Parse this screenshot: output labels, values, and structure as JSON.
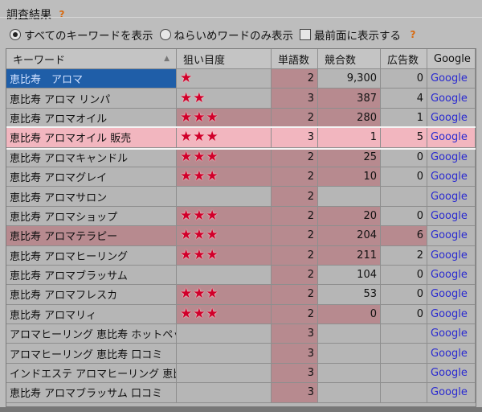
{
  "title": "調査結果",
  "options": {
    "all_keywords": "すべてのキーワードを表示",
    "target_only": "ねらいめワードのみ表示",
    "always_on_top": "最前面に表示する",
    "selected": "all_keywords",
    "always_on_top_checked": false
  },
  "icons": {
    "help": "?",
    "star": "★",
    "sort": "▲"
  },
  "colors": {
    "highlight_cell": "#b78a8f",
    "selected_row": "#1f5ea8",
    "focus_row": "#f2b6bf",
    "star": "#d0002a",
    "link": "#2a2ad0"
  },
  "columns": [
    "キーワード",
    "狙い目度",
    "単語数",
    "競合数",
    "広告数",
    "Google"
  ],
  "rows": [
    {
      "keyword": "恵比寿　アロマ",
      "stars": 1,
      "words": "2",
      "competition": "9,300",
      "ads": "0",
      "link": "Google",
      "selected": true,
      "hl": [
        false,
        false,
        true,
        false,
        false
      ]
    },
    {
      "keyword": "恵比寿 アロマ リンパ",
      "stars": 2,
      "words": "3",
      "competition": "387",
      "ads": "4",
      "link": "Google",
      "hl": [
        false,
        false,
        true,
        true,
        false
      ]
    },
    {
      "keyword": "恵比寿 アロマオイル",
      "stars": 3,
      "words": "2",
      "competition": "280",
      "ads": "1",
      "link": "Google",
      "hl": [
        false,
        true,
        true,
        true,
        false
      ]
    },
    {
      "keyword": "恵比寿 アロマオイル 販売",
      "stars": 3,
      "words": "3",
      "competition": "1",
      "ads": "5",
      "link": "Google",
      "focus": true,
      "hl": [
        true,
        true,
        true,
        true,
        true
      ]
    },
    {
      "keyword": "恵比寿 アロマキャンドル",
      "stars": 3,
      "words": "2",
      "competition": "25",
      "ads": "0",
      "link": "Google",
      "hl": [
        false,
        true,
        true,
        true,
        false
      ]
    },
    {
      "keyword": "恵比寿 アロマグレイ",
      "stars": 3,
      "words": "2",
      "competition": "10",
      "ads": "0",
      "link": "Google",
      "hl": [
        false,
        true,
        true,
        true,
        false
      ]
    },
    {
      "keyword": "恵比寿 アロマサロン",
      "stars": 0,
      "words": "2",
      "competition": "",
      "ads": "",
      "link": "Google",
      "hl": [
        false,
        false,
        true,
        false,
        false
      ]
    },
    {
      "keyword": "恵比寿 アロマショップ",
      "stars": 3,
      "words": "2",
      "competition": "20",
      "ads": "0",
      "link": "Google",
      "hl": [
        false,
        true,
        true,
        true,
        false
      ]
    },
    {
      "keyword": "恵比寿 アロマテラピー",
      "stars": 3,
      "words": "2",
      "competition": "204",
      "ads": "6",
      "link": "Google",
      "hl": [
        true,
        true,
        true,
        true,
        true
      ]
    },
    {
      "keyword": "恵比寿 アロマヒーリング",
      "stars": 3,
      "words": "2",
      "competition": "211",
      "ads": "2",
      "link": "Google",
      "hl": [
        false,
        true,
        true,
        true,
        false
      ]
    },
    {
      "keyword": "恵比寿 アロマブラッサム",
      "stars": 0,
      "words": "2",
      "competition": "104",
      "ads": "0",
      "link": "Google",
      "hl": [
        false,
        false,
        true,
        false,
        false
      ]
    },
    {
      "keyword": "恵比寿 アロマフレスカ",
      "stars": 3,
      "words": "2",
      "competition": "53",
      "ads": "0",
      "link": "Google",
      "hl": [
        false,
        true,
        true,
        false,
        false
      ]
    },
    {
      "keyword": "恵比寿 アロマリィ",
      "stars": 3,
      "words": "2",
      "competition": "0",
      "ads": "0",
      "link": "Google",
      "hl": [
        false,
        true,
        true,
        true,
        false
      ]
    },
    {
      "keyword": "アロマヒーリング 恵比寿 ホットペッパ",
      "stars": 0,
      "words": "3",
      "competition": "",
      "ads": "",
      "link": "Google",
      "hl": [
        false,
        false,
        true,
        false,
        false
      ]
    },
    {
      "keyword": "アロマヒーリング 恵比寿 口コミ",
      "stars": 0,
      "words": "3",
      "competition": "",
      "ads": "",
      "link": "Google",
      "hl": [
        false,
        false,
        true,
        false,
        false
      ]
    },
    {
      "keyword": "インドエステ アロマヒーリング 恵比寿",
      "stars": 0,
      "words": "3",
      "competition": "",
      "ads": "",
      "link": "Google",
      "hl": [
        false,
        false,
        true,
        false,
        false
      ]
    },
    {
      "keyword": "恵比寿 アロマブラッサム 口コミ",
      "stars": 0,
      "words": "3",
      "competition": "",
      "ads": "",
      "link": "Google",
      "hl": [
        false,
        false,
        true,
        false,
        false
      ]
    }
  ]
}
